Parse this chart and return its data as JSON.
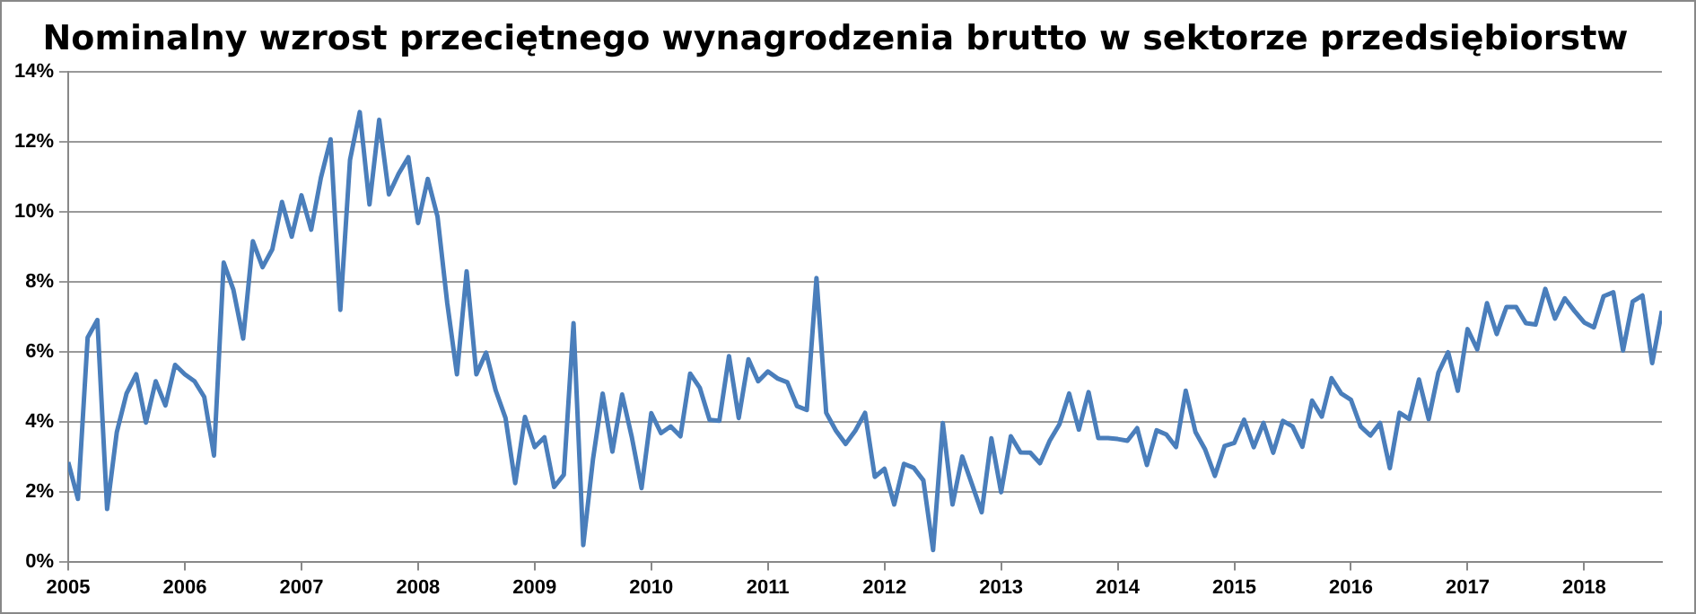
{
  "chart_data": {
    "type": "line",
    "title": "Nominalny wzrost przeciętnego wynagrodzenia brutto w sektorze przedsiębiorstw",
    "xlim": [
      "2005-01",
      "2018-09"
    ],
    "xticks": [
      "2005",
      "2006",
      "2007",
      "2008",
      "2009",
      "2010",
      "2011",
      "2012",
      "2013",
      "2014",
      "2015",
      "2016",
      "2017",
      "2018"
    ],
    "ylim": [
      0,
      14
    ],
    "yticks": [
      {
        "value": 0,
        "label": "0%"
      },
      {
        "value": 2,
        "label": "2%"
      },
      {
        "value": 4,
        "label": "4%"
      },
      {
        "value": 6,
        "label": "6%"
      },
      {
        "value": 8,
        "label": "8%"
      },
      {
        "value": 10,
        "label": "10%"
      },
      {
        "value": 12,
        "label": "12%"
      },
      {
        "value": 14,
        "label": "14%"
      }
    ],
    "grid": "y",
    "legend": false,
    "marker": "none",
    "line_style": "solid",
    "series": [
      {
        "color": "#4a7ebb",
        "x": [
          "2005-01",
          "2005-02",
          "2005-03",
          "2005-04",
          "2005-05",
          "2005-06",
          "2005-07",
          "2005-08",
          "2005-09",
          "2005-10",
          "2005-11",
          "2005-12",
          "2006-01",
          "2006-02",
          "2006-03",
          "2006-04",
          "2006-05",
          "2006-06",
          "2006-07",
          "2006-08",
          "2006-09",
          "2006-10",
          "2006-11",
          "2006-12",
          "2007-01",
          "2007-02",
          "2007-03",
          "2007-04",
          "2007-05",
          "2007-06",
          "2007-07",
          "2007-08",
          "2007-09",
          "2007-10",
          "2007-11",
          "2007-12",
          "2008-01",
          "2008-02",
          "2008-03",
          "2008-04",
          "2008-05",
          "2008-06",
          "2008-07",
          "2008-08",
          "2008-09",
          "2008-10",
          "2008-11",
          "2008-12",
          "2009-01",
          "2009-02",
          "2009-03",
          "2009-04",
          "2009-05",
          "2009-06",
          "2009-07",
          "2009-08",
          "2009-09",
          "2009-10",
          "2009-11",
          "2009-12",
          "2010-01",
          "2010-02",
          "2010-03",
          "2010-04",
          "2010-05",
          "2010-06",
          "2010-07",
          "2010-08",
          "2010-09",
          "2010-10",
          "2010-11",
          "2010-12",
          "2011-01",
          "2011-02",
          "2011-03",
          "2011-04",
          "2011-05",
          "2011-06",
          "2011-07",
          "2011-08",
          "2011-09",
          "2011-10",
          "2011-11",
          "2011-12",
          "2012-01",
          "2012-02",
          "2012-03",
          "2012-04",
          "2012-05",
          "2012-06",
          "2012-07",
          "2012-08",
          "2012-09",
          "2012-10",
          "2012-11",
          "2012-12",
          "2013-01",
          "2013-02",
          "2013-03",
          "2013-04",
          "2013-05",
          "2013-06",
          "2013-07",
          "2013-08",
          "2013-09",
          "2013-10",
          "2013-11",
          "2013-12",
          "2014-01",
          "2014-02",
          "2014-03",
          "2014-04",
          "2014-05",
          "2014-06",
          "2014-07",
          "2014-08",
          "2014-09",
          "2014-10",
          "2014-11",
          "2014-12",
          "2015-01",
          "2015-02",
          "2015-03",
          "2015-04",
          "2015-05",
          "2015-06",
          "2015-07",
          "2015-08",
          "2015-09",
          "2015-10",
          "2015-11",
          "2015-12",
          "2016-01",
          "2016-02",
          "2016-03",
          "2016-04",
          "2016-05",
          "2016-06",
          "2016-07",
          "2016-08",
          "2016-09",
          "2016-10",
          "2016-11",
          "2016-12",
          "2017-01",
          "2017-02",
          "2017-03",
          "2017-04",
          "2017-05",
          "2017-06",
          "2017-07",
          "2017-08",
          "2017-09",
          "2017-10",
          "2017-11",
          "2017-12",
          "2018-01",
          "2018-02",
          "2018-03",
          "2018-04",
          "2018-05",
          "2018-06",
          "2018-07",
          "2018-08",
          "2018-09"
        ],
        "values": [
          2.84,
          1.79,
          6.4,
          6.9,
          1.5,
          3.7,
          4.8,
          5.35,
          3.97,
          5.15,
          4.46,
          5.62,
          5.35,
          5.15,
          4.7,
          3.03,
          8.54,
          7.76,
          6.37,
          9.15,
          8.41,
          8.92,
          10.27,
          9.28,
          10.46,
          9.48,
          10.96,
          12.06,
          7.19,
          11.48,
          12.84,
          10.2,
          12.62,
          10.49,
          11.08,
          11.55,
          9.67,
          10.93,
          9.86,
          7.39,
          5.35,
          8.29,
          5.35,
          5.97,
          4.88,
          4.1,
          2.24,
          4.13,
          3.27,
          3.55,
          2.13,
          2.48,
          6.81,
          0.47,
          2.92,
          4.8,
          3.14,
          4.77,
          3.55,
          2.1,
          4.24,
          3.67,
          3.86,
          3.58,
          5.37,
          4.96,
          4.05,
          4.02,
          5.87,
          4.1,
          5.78,
          5.15,
          5.43,
          5.23,
          5.12,
          4.44,
          4.33,
          8.1,
          4.25,
          3.74,
          3.36,
          3.74,
          4.25,
          2.42,
          2.65,
          1.63,
          2.79,
          2.68,
          2.32,
          0.33,
          3.96,
          1.63,
          3.0,
          2.21,
          1.41,
          3.52,
          1.98,
          3.58,
          3.12,
          3.11,
          2.81,
          3.45,
          3.92,
          4.8,
          3.77,
          4.84,
          3.53,
          3.53,
          3.5,
          3.45,
          3.81,
          2.76,
          3.75,
          3.63,
          3.27,
          4.88,
          3.7,
          3.2,
          2.45,
          3.3,
          3.39,
          4.05,
          3.27,
          3.96,
          3.11,
          4.02,
          3.86,
          3.28,
          4.6,
          4.14,
          5.24,
          4.8,
          4.62,
          3.86,
          3.6,
          3.96,
          2.67,
          4.25,
          4.07,
          5.2,
          4.07,
          5.4,
          5.98,
          4.88,
          6.64,
          6.06,
          7.38,
          6.5,
          7.27,
          7.27,
          6.81,
          6.77,
          7.79,
          6.94,
          7.52,
          7.16,
          6.83,
          6.69,
          7.58,
          7.69,
          6.03,
          7.43,
          7.6,
          5.67,
          7.16
        ]
      }
    ]
  }
}
